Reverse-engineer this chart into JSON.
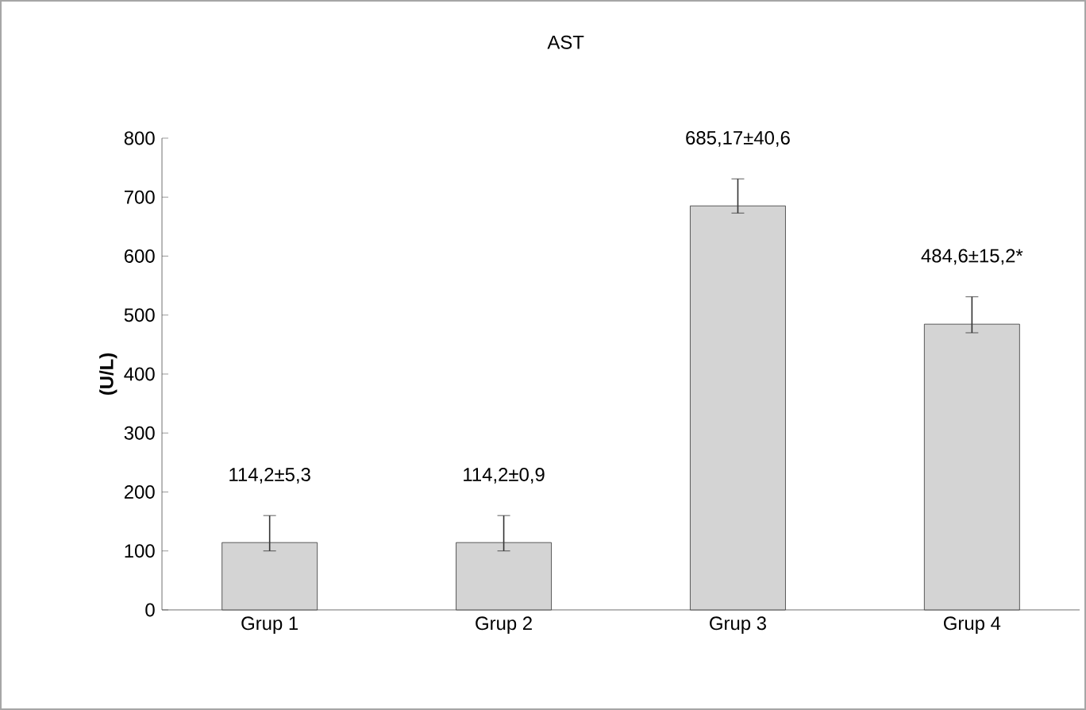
{
  "chart_data": {
    "type": "bar",
    "title": "AST",
    "ylabel": "(U/L)",
    "categories": [
      "Grup 1",
      "Grup 2",
      "Grup 3",
      "Grup 4"
    ],
    "values": [
      114.2,
      114.2,
      685.17,
      484.6
    ],
    "errors": [
      [
        100,
        160
      ],
      [
        100,
        160
      ],
      [
        673,
        731
      ],
      [
        470,
        531
      ]
    ],
    "value_labels": [
      "114,2±5,3",
      "114,2±0,9",
      "685,17±40,6",
      "484,6±15,2*"
    ],
    "color": "#d4d4d4",
    "ylim": [
      0,
      800
    ],
    "yticks": [
      0,
      100,
      200,
      300,
      400,
      500,
      600,
      700,
      800
    ],
    "grid": false
  }
}
